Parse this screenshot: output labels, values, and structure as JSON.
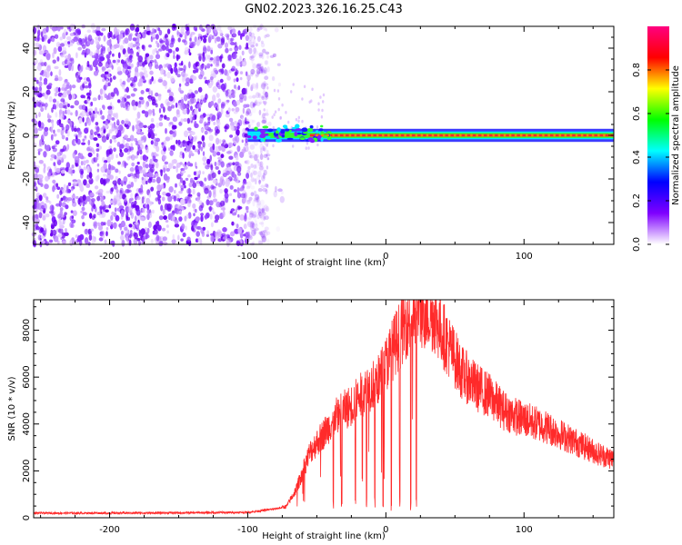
{
  "title": "GN02.2023.326.16.25.C43",
  "chart_data": [
    {
      "type": "heatmap",
      "xlabel": "Height of straight line (km)",
      "ylabel": "Frequency (Hz)",
      "xlim": [
        -255,
        165
      ],
      "ylim": [
        -50,
        50
      ],
      "x_ticks": [
        -200,
        -100,
        0,
        100
      ],
      "y_ticks": [
        -40,
        -20,
        0,
        20,
        40
      ],
      "x_tick_labels": [
        "-200",
        "-100",
        "0",
        "100"
      ],
      "y_tick_labels": [
        "-40",
        "-20",
        "0",
        "20",
        "40"
      ],
      "noise_region_x": [
        -255,
        -85
      ],
      "signal_start_x": -100,
      "signal_frequency": 0,
      "colorbar": {
        "label": "Normalized spectral amplitude",
        "range": [
          0,
          1
        ],
        "ticks": [
          "0.0",
          "0.2",
          "0.4",
          "0.6",
          "0.8"
        ],
        "tick_values": [
          0.0,
          0.2,
          0.4,
          0.6,
          0.8
        ],
        "colors": [
          "#ffffff",
          "#7f00ff",
          "#0000ff",
          "#00ffff",
          "#00ff00",
          "#ffff00",
          "#ff0000",
          "#ff0080"
        ]
      }
    },
    {
      "type": "line",
      "xlabel": "Height of straight line (km)",
      "ylabel": "SNR (10 * v/v)",
      "xlim": [
        -255,
        165
      ],
      "ylim": [
        0,
        9300
      ],
      "x_ticks": [
        -200,
        -100,
        0,
        100
      ],
      "y_ticks": [
        0,
        2000,
        4000,
        6000,
        8000
      ],
      "x_tick_labels": [
        "-200",
        "-100",
        "0",
        "100"
      ],
      "y_tick_labels": [
        "0",
        "2000",
        "4000",
        "6000",
        "8000"
      ],
      "color": "#ff2a2a",
      "envelope": {
        "x": [
          -255,
          -200,
          -150,
          -100,
          -80,
          -72,
          -65,
          -55,
          -45,
          -35,
          -25,
          -15,
          -5,
          5,
          15,
          25,
          35,
          45,
          55,
          65,
          75,
          85,
          95,
          105,
          115,
          125,
          135,
          145,
          155,
          165
        ],
        "y": [
          200,
          200,
          210,
          230,
          380,
          480,
          1200,
          2800,
          3600,
          4400,
          4800,
          5400,
          5900,
          7200,
          8400,
          8900,
          8600,
          7400,
          6200,
          5600,
          5200,
          4600,
          4300,
          4100,
          3900,
          3600,
          3300,
          3000,
          2700,
          2500
        ]
      },
      "dropouts_x": [
        -38,
        -32,
        -22,
        -14,
        -8,
        -2,
        4,
        10,
        18,
        22
      ]
    }
  ]
}
